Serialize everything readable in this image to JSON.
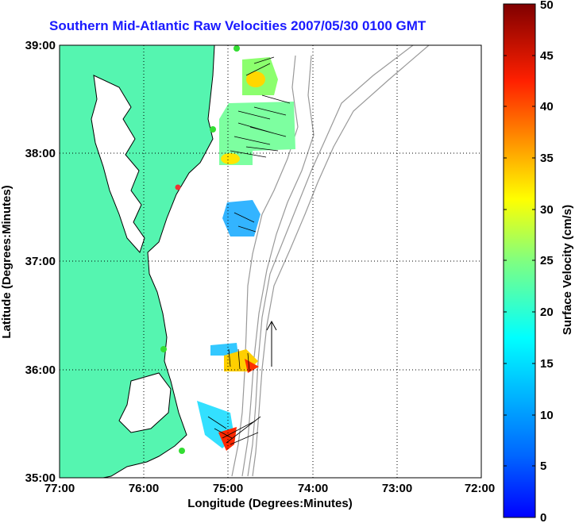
{
  "title": "Southern Mid-Atlantic Raw Velocities 2007/05/30 0100 GMT",
  "axes": {
    "xlabel": "Longitude (Degrees:Minutes)",
    "ylabel": "Latitude (Degrees:Minutes)",
    "x_ticks": [
      "77:00",
      "76:00",
      "75:00",
      "74:00",
      "73:00",
      "72:00"
    ],
    "y_ticks": [
      "39:00",
      "38:00",
      "37:00",
      "36:00",
      "35:00"
    ],
    "xlim": [
      -77,
      -72
    ],
    "ylim": [
      35,
      39
    ],
    "grid": "dotted"
  },
  "colorbar": {
    "label": "Surface Velocity (cm/s)",
    "ticks": [
      "0",
      "5",
      "10",
      "15",
      "20",
      "25",
      "30",
      "35",
      "40",
      "45",
      "50"
    ],
    "range": [
      0,
      50
    ],
    "colormap": "jet"
  },
  "colors": {
    "land": "#55f5b0",
    "ocean": "#ffffff",
    "title": "#1a1aff",
    "bathymetry": "#999999",
    "station_green": "#33dd33",
    "station_red": "#ee3333"
  },
  "chart_data": {
    "type": "heatmap",
    "title": "Southern Mid-Atlantic Raw Velocities 2007/05/30 0100 GMT",
    "xlabel": "Longitude (Degrees:Minutes)",
    "ylabel": "Latitude (Degrees:Minutes)",
    "colorbar_label": "Surface Velocity (cm/s)",
    "velocity_regions": [
      {
        "name": "",
        "lon": [
          -75.1,
          -74.6
        ],
        "lat": [
          38.5,
          38.85
        ],
        "speed_range_cms": [
          10,
          38
        ]
      },
      {
        "name": "",
        "lon": [
          -75.1,
          -74.2
        ],
        "lat": [
          37.9,
          38.5
        ],
        "speed_range_cms": [
          10,
          30
        ]
      },
      {
        "name": "",
        "lon": [
          -75.1,
          -74.75
        ],
        "lat": [
          37.2,
          37.55
        ],
        "speed_range_cms": [
          3,
          14
        ]
      },
      {
        "name": "",
        "lon": [
          -75.2,
          -74.6
        ],
        "lat": [
          36.1,
          36.45
        ],
        "speed_range_cms": [
          5,
          45
        ]
      },
      {
        "name": "",
        "lon": [
          -75.4,
          -74.95
        ],
        "lat": [
          35.3,
          35.7
        ],
        "speed_range_cms": [
          10,
          45
        ]
      }
    ],
    "reference_vector": {
      "lon": -74.55,
      "lat_start": 36.05,
      "lat_end": 36.5
    }
  }
}
